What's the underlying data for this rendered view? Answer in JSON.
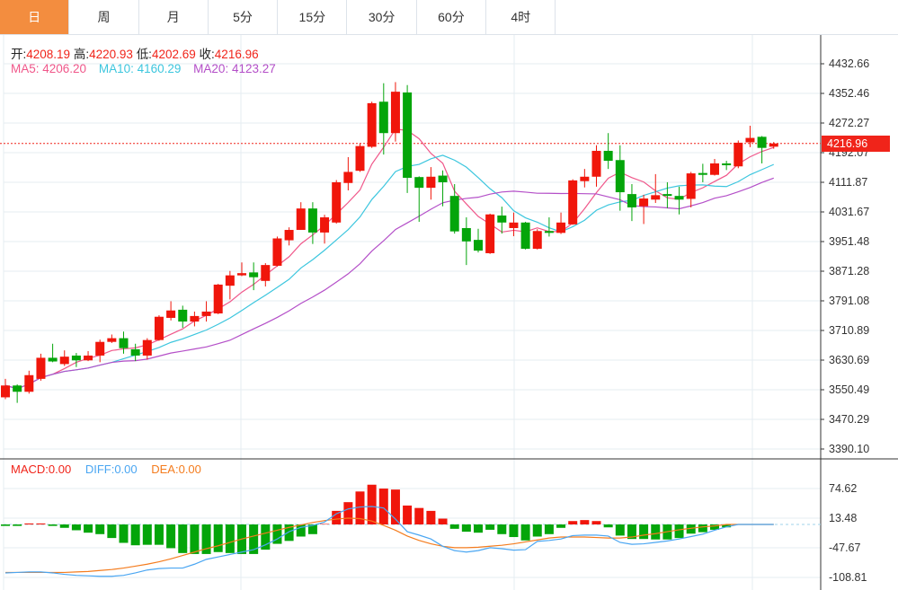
{
  "tabs": [
    {
      "label": "日",
      "active": true
    },
    {
      "label": "周"
    },
    {
      "label": "月"
    },
    {
      "label": "5分"
    },
    {
      "label": "15分"
    },
    {
      "label": "30分"
    },
    {
      "label": "60分"
    },
    {
      "label": "4时"
    }
  ],
  "ohlc": {
    "open_label": "开:",
    "open": "4208.19",
    "high_label": "高:",
    "high": "4220.93",
    "low_label": "低:",
    "low": "4202.69",
    "close_label": "收:",
    "close": "4216.96"
  },
  "ma": {
    "ma5": "MA5: 4206.20",
    "ma10": "MA10: 4160.29",
    "ma20": "MA20: 4123.27"
  },
  "macd_header": {
    "macd": "MACD:0.00",
    "diff": "DIFF:0.00",
    "dea": "DEA:0.00"
  },
  "current_price": "4216.96",
  "colors": {
    "up": "#f0160b",
    "down": "#04a50a",
    "ma5": "#f0578a",
    "ma10": "#3cc6de",
    "ma20": "#b44fc8",
    "diff": "#4aa6f2",
    "dea": "#f47c1e",
    "accent": "#f38d3f"
  },
  "chart_data": {
    "type": "candlestick",
    "price_axis": [
      "4432.66",
      "4352.46",
      "4272.27",
      "4192.07",
      "4111.87",
      "4031.67",
      "3951.48",
      "3871.28",
      "3791.08",
      "3710.89",
      "3630.69",
      "3550.49",
      "3470.29",
      "3390.10"
    ],
    "price_range": [
      3390.1,
      4432.66
    ],
    "macd_axis": [
      "74.62",
      "13.48",
      "-47.67",
      "-108.81"
    ],
    "candles": [
      [
        3530,
        3562,
        3580,
        3525
      ],
      [
        3562,
        3545,
        3565,
        3515
      ],
      [
        3545,
        3590,
        3602,
        3540
      ],
      [
        3580,
        3637,
        3648,
        3575
      ],
      [
        3637,
        3627,
        3675,
        3625
      ],
      [
        3620,
        3640,
        3657,
        3615
      ],
      [
        3643,
        3630,
        3650,
        3612
      ],
      [
        3630,
        3643,
        3655,
        3628
      ],
      [
        3643,
        3680,
        3686,
        3625
      ],
      [
        3680,
        3690,
        3700,
        3677
      ],
      [
        3690,
        3663,
        3708,
        3648
      ],
      [
        3660,
        3643,
        3675,
        3628
      ],
      [
        3643,
        3685,
        3690,
        3632
      ],
      [
        3685,
        3748,
        3752,
        3683
      ],
      [
        3745,
        3765,
        3790,
        3738
      ],
      [
        3767,
        3735,
        3778,
        3718
      ],
      [
        3735,
        3750,
        3762,
        3722
      ],
      [
        3750,
        3762,
        3790,
        3735
      ],
      [
        3757,
        3835,
        3837,
        3755
      ],
      [
        3832,
        3860,
        3872,
        3795
      ],
      [
        3860,
        3866,
        3895,
        3858
      ],
      [
        3868,
        3855,
        3895,
        3820
      ],
      [
        3845,
        3888,
        3893,
        3830
      ],
      [
        3886,
        3960,
        3965,
        3884
      ],
      [
        3955,
        3983,
        3990,
        3941
      ],
      [
        3983,
        4041,
        4058,
        3983
      ],
      [
        4041,
        3976,
        4058,
        3945
      ],
      [
        3976,
        4017,
        4024,
        3946
      ],
      [
        4003,
        4112,
        4118,
        4000
      ],
      [
        4110,
        4140,
        4180,
        4090
      ],
      [
        4143,
        4210,
        4218,
        4140
      ],
      [
        4208,
        4326,
        4330,
        4205
      ],
      [
        4330,
        4245,
        4380,
        4187
      ],
      [
        4245,
        4357,
        4383,
        4222
      ],
      [
        4355,
        4124,
        4375,
        4083
      ],
      [
        4126,
        4097,
        4128,
        4005
      ],
      [
        4097,
        4127,
        4153,
        4065
      ],
      [
        4130,
        4112,
        4144,
        4047
      ],
      [
        4075,
        3979,
        4107,
        3973
      ],
      [
        3988,
        3952,
        4017,
        3888
      ],
      [
        3956,
        3927,
        3986,
        3922
      ],
      [
        3920,
        4025,
        4027,
        3918
      ],
      [
        4022,
        4003,
        4046,
        3973
      ],
      [
        3988,
        4003,
        4030,
        3966
      ],
      [
        4003,
        3932,
        4005,
        3930
      ],
      [
        3932,
        3980,
        3985,
        3930
      ],
      [
        3980,
        3975,
        4017,
        3965
      ],
      [
        3975,
        4003,
        4030,
        3972
      ],
      [
        3998,
        4117,
        4120,
        3997
      ],
      [
        4115,
        4127,
        4148,
        4098
      ],
      [
        4127,
        4197,
        4212,
        4100
      ],
      [
        4197,
        4170,
        4245,
        4148
      ],
      [
        4172,
        4085,
        4212,
        4035
      ],
      [
        4080,
        4044,
        4107,
        4007
      ],
      [
        4047,
        4068,
        4078,
        3999
      ],
      [
        4065,
        4077,
        4134,
        4056
      ],
      [
        4080,
        4075,
        4112,
        4042
      ],
      [
        4075,
        4065,
        4100,
        4025
      ],
      [
        4067,
        4136,
        4140,
        4044
      ],
      [
        4137,
        4132,
        4162,
        4112
      ],
      [
        4132,
        4163,
        4175,
        4130
      ],
      [
        4163,
        4158,
        4170,
        4145
      ],
      [
        4155,
        4219,
        4225,
        4150
      ],
      [
        4220,
        4232,
        4265,
        4207
      ],
      [
        4235,
        4205,
        4237,
        4163
      ],
      [
        4208.19,
        4216.96,
        4220.93,
        4202.69
      ]
    ],
    "macd_hist": [
      -3,
      -3,
      2,
      2,
      -3,
      -7,
      -12,
      -17,
      -20,
      -28,
      -38,
      -43,
      -42,
      -42,
      -49,
      -59,
      -61,
      -61,
      -57,
      -59,
      -61,
      -61,
      -52,
      -40,
      -34,
      -25,
      -20,
      1,
      28,
      46,
      68,
      82,
      74,
      72,
      39,
      34,
      28,
      12,
      -9,
      -15,
      -17,
      -11,
      -20,
      -26,
      -33,
      -25,
      -20,
      -7,
      7,
      9,
      7,
      -6,
      -23,
      -30,
      -30,
      -31,
      -31,
      -28,
      -19,
      -16,
      -11,
      -6,
      0,
      0,
      0,
      0
    ],
    "diff": [
      -100,
      -99,
      -98,
      -98,
      -100,
      -103,
      -105,
      -106,
      -107,
      -107,
      -105,
      -100,
      -94,
      -91,
      -90,
      -90,
      -82,
      -72,
      -67,
      -62,
      -57,
      -52,
      -42,
      -30,
      -15,
      -6,
      -2,
      5,
      22,
      32,
      36,
      37,
      34,
      11,
      -15,
      -22,
      -30,
      -45,
      -54,
      -57,
      -54,
      -48,
      -50,
      -53,
      -52,
      -35,
      -33,
      -30,
      -23,
      -22,
      -22,
      -24,
      -37,
      -41,
      -40,
      -37,
      -34,
      -30,
      -25,
      -20,
      -12,
      -5,
      0,
      0,
      0,
      0
    ],
    "dea": [
      -99,
      -99,
      -99,
      -99,
      -99,
      -99,
      -98,
      -97,
      -95,
      -93,
      -90,
      -86,
      -82,
      -77,
      -71,
      -64,
      -57,
      -50,
      -44,
      -37,
      -30,
      -24,
      -18,
      -12,
      -6,
      -1,
      4,
      8,
      11,
      13,
      12,
      7,
      -2,
      -12,
      -24,
      -33,
      -40,
      -45,
      -48,
      -48,
      -47,
      -45,
      -43,
      -40,
      -36,
      -32,
      -28,
      -26,
      -26,
      -26,
      -27,
      -28,
      -28,
      -26,
      -22,
      -19,
      -15,
      -11,
      -8,
      -5,
      -3,
      0,
      0,
      0,
      0,
      0
    ]
  }
}
